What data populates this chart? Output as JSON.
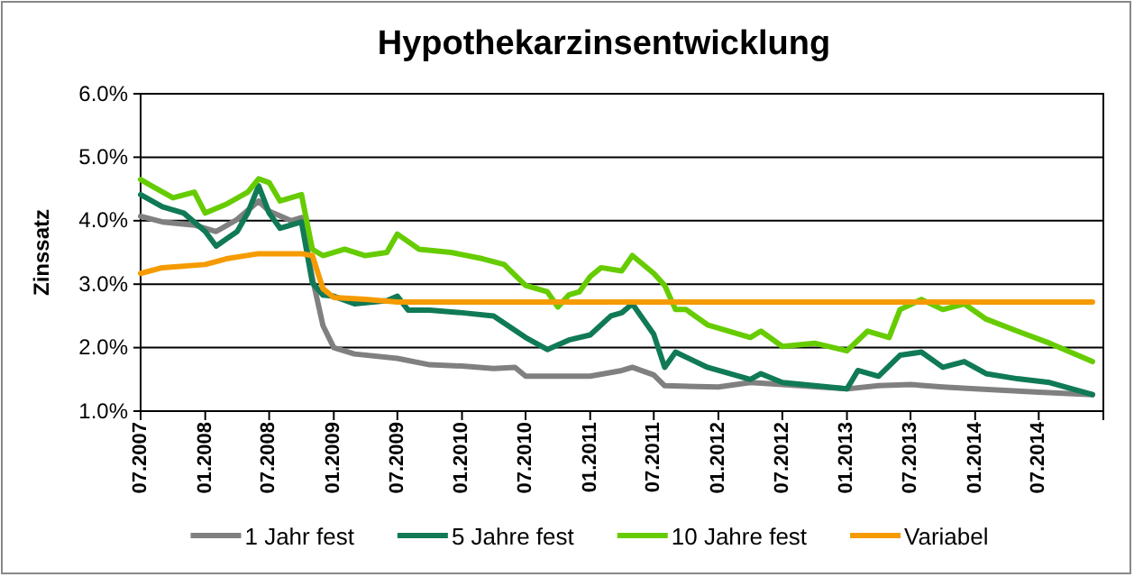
{
  "chart_data": {
    "type": "line",
    "title": "Hypothekarzinsentwicklung",
    "ylabel": "Zinssatz",
    "xlim": [
      "2007-07",
      "2015-01"
    ],
    "xticks": [
      {
        "value": "2007-07",
        "label": "07.2007"
      },
      {
        "value": "2008-01",
        "label": "01.2008"
      },
      {
        "value": "2008-07",
        "label": "07.2008"
      },
      {
        "value": "2009-01",
        "label": "01.2009"
      },
      {
        "value": "2009-07",
        "label": "07.2009"
      },
      {
        "value": "2010-01",
        "label": "01.2010"
      },
      {
        "value": "2010-07",
        "label": "07.2010"
      },
      {
        "value": "2011-01",
        "label": "01.2011"
      },
      {
        "value": "2011-07",
        "label": "07.2011"
      },
      {
        "value": "2012-01",
        "label": "01.2012"
      },
      {
        "value": "2012-07",
        "label": "07.2012"
      },
      {
        "value": "2013-01",
        "label": "01.2013"
      },
      {
        "value": "2013-07",
        "label": "07.2013"
      },
      {
        "value": "2014-01",
        "label": "01.2014"
      },
      {
        "value": "2014-07",
        "label": "07.2014"
      },
      {
        "value": "2015-01",
        "label": null
      }
    ],
    "ylim": [
      1,
      6
    ],
    "yticks": [
      {
        "value": 1,
        "label": "1.0%"
      },
      {
        "value": 2,
        "label": "2.0%"
      },
      {
        "value": 3,
        "label": "3.0%"
      },
      {
        "value": 4,
        "label": "4.0%"
      },
      {
        "value": 5,
        "label": "5.0%"
      },
      {
        "value": 6,
        "label": "6.0%"
      }
    ],
    "grid": "y",
    "legend": "bottom",
    "marker": "none",
    "line_style": "solid",
    "series": [
      {
        "name": "1 Jahr fest",
        "color": "#808080",
        "x": [
          "2007-07",
          "2007-09",
          "2007-12",
          "2008-02",
          "2008-04",
          "2008-06",
          "2008-07",
          "2008-09",
          "2008-10",
          "2008-11",
          "2008-12",
          "2009-01",
          "2009-03",
          "2009-07",
          "2009-10",
          "2010-01",
          "2010-04",
          "2010-06",
          "2010-07",
          "2010-10",
          "2011-01",
          "2011-04",
          "2011-05",
          "2011-07",
          "2011-08",
          "2012-01",
          "2012-04",
          "2012-07",
          "2013-01",
          "2013-04",
          "2013-07",
          "2013-10",
          "2014-01",
          "2014-07",
          "2014-12"
        ],
        "values": [
          4.07,
          3.98,
          3.93,
          3.83,
          4.02,
          4.31,
          4.15,
          4.0,
          4.05,
          3.1,
          2.35,
          2.0,
          1.9,
          1.83,
          1.73,
          1.71,
          1.67,
          1.69,
          1.55,
          1.55,
          1.55,
          1.64,
          1.69,
          1.57,
          1.4,
          1.38,
          1.45,
          1.42,
          1.35,
          1.4,
          1.42,
          1.38,
          1.35,
          1.3,
          1.26
        ]
      },
      {
        "name": "5 Jahre fest",
        "color": "#107a56",
        "x": [
          "2007-07",
          "2007-09",
          "2007-11",
          "2008-01",
          "2008-02",
          "2008-04",
          "2008-05",
          "2008-06",
          "2008-07",
          "2008-08",
          "2008-10",
          "2008-11",
          "2008-12",
          "2009-01",
          "2009-03",
          "2009-06",
          "2009-07",
          "2009-08",
          "2009-10",
          "2010-01",
          "2010-04",
          "2010-07",
          "2010-09",
          "2010-11",
          "2011-01",
          "2011-03",
          "2011-04",
          "2011-05",
          "2011-07",
          "2011-08",
          "2011-09",
          "2011-12",
          "2012-04",
          "2012-05",
          "2012-07",
          "2012-10",
          "2013-01",
          "2013-02",
          "2013-04",
          "2013-06",
          "2013-08",
          "2013-10",
          "2013-12",
          "2014-02",
          "2014-05",
          "2014-08",
          "2014-12"
        ],
        "values": [
          4.41,
          4.22,
          4.12,
          3.83,
          3.6,
          3.83,
          4.12,
          4.55,
          4.12,
          3.88,
          3.98,
          3.02,
          2.83,
          2.81,
          2.69,
          2.74,
          2.81,
          2.59,
          2.59,
          2.55,
          2.5,
          2.16,
          1.97,
          2.12,
          2.2,
          2.5,
          2.55,
          2.69,
          2.21,
          1.69,
          1.93,
          1.69,
          1.5,
          1.59,
          1.45,
          1.4,
          1.35,
          1.64,
          1.55,
          1.88,
          1.93,
          1.69,
          1.78,
          1.59,
          1.51,
          1.45,
          1.26
        ]
      },
      {
        "name": "10 Jahre fest",
        "color": "#66cc00",
        "x": [
          "2007-07",
          "2007-08",
          "2007-10",
          "2007-12",
          "2008-01",
          "2008-03",
          "2008-05",
          "2008-06",
          "2008-07",
          "2008-08",
          "2008-10",
          "2008-11",
          "2008-12",
          "2009-02",
          "2009-04",
          "2009-06",
          "2009-07",
          "2009-09",
          "2009-12",
          "2010-03",
          "2010-05",
          "2010-07",
          "2010-09",
          "2010-10",
          "2010-11",
          "2010-12",
          "2011-01",
          "2011-02",
          "2011-04",
          "2011-05",
          "2011-07",
          "2011-08",
          "2011-09",
          "2011-10",
          "2011-12",
          "2012-04",
          "2012-05",
          "2012-07",
          "2012-10",
          "2013-01",
          "2013-03",
          "2013-05",
          "2013-06",
          "2013-08",
          "2013-10",
          "2013-12",
          "2014-02",
          "2014-05",
          "2014-08",
          "2014-12"
        ],
        "values": [
          4.65,
          4.55,
          4.36,
          4.45,
          4.12,
          4.26,
          4.45,
          4.66,
          4.6,
          4.31,
          4.41,
          3.55,
          3.45,
          3.55,
          3.45,
          3.5,
          3.79,
          3.55,
          3.5,
          3.4,
          3.31,
          2.98,
          2.88,
          2.64,
          2.83,
          2.88,
          3.12,
          3.26,
          3.21,
          3.45,
          3.17,
          2.98,
          2.6,
          2.6,
          2.36,
          2.16,
          2.26,
          2.02,
          2.07,
          1.95,
          2.26,
          2.16,
          2.6,
          2.76,
          2.6,
          2.69,
          2.45,
          2.26,
          2.07,
          1.78
        ]
      },
      {
        "name": "Variabel",
        "color": "#f59b00",
        "x": [
          "2007-07",
          "2007-09",
          "2008-01",
          "2008-03",
          "2008-06",
          "2008-10",
          "2008-11",
          "2008-12",
          "2009-01",
          "2009-04",
          "2009-07",
          "2014-12"
        ],
        "values": [
          3.17,
          3.26,
          3.31,
          3.4,
          3.48,
          3.48,
          3.45,
          2.93,
          2.79,
          2.76,
          2.72,
          2.72
        ]
      }
    ]
  }
}
